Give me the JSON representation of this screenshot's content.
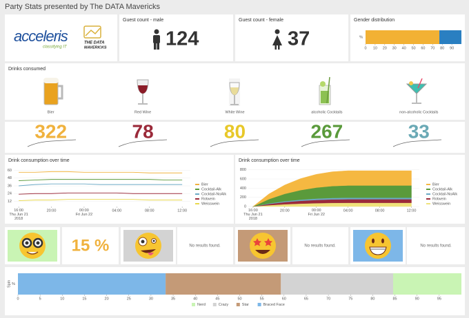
{
  "header": {
    "title": "Party Stats presented by The DATA Mavericks"
  },
  "logos": {
    "acceleris": "acceleris",
    "tagline": "classifying IT",
    "mavericks_top": "THE DATA",
    "mavericks_bottom": "MAVERICKS"
  },
  "guest_male": {
    "title": "Guest count - male",
    "value": 124
  },
  "guest_female": {
    "title": "Guest count - female",
    "value": 37
  },
  "drinks": {
    "title": "Drinks consumed",
    "items": [
      {
        "label": "Bier",
        "count": 322,
        "color": "#f0b23e"
      },
      {
        "label": "Red Wine",
        "count": 78,
        "color": "#9b2a3a"
      },
      {
        "label": "White Wine",
        "count": 80,
        "color": "#e8c829"
      },
      {
        "label": "alcoholic Cocktails",
        "count": 267,
        "color": "#5a9a3b"
      },
      {
        "label": "non-alcoholic Cocktails",
        "count": 33,
        "color": "#6aa9b5"
      }
    ]
  },
  "emoji_row": {
    "nerd_share": "15 %",
    "no_results": [
      "No results found.",
      "No results found.",
      "No results found."
    ]
  },
  "chart_data": [
    {
      "type": "hbar",
      "title": "Gender distribution",
      "categories": [
        "%"
      ],
      "series": [
        {
          "color": "#f2b134",
          "values": [
            77
          ]
        },
        {
          "color": "#2a7fc1",
          "values": [
            23
          ]
        }
      ],
      "xlim": [
        0,
        100
      ],
      "xticks": [
        0,
        10,
        20,
        30,
        40,
        50,
        60,
        70,
        80,
        90
      ]
    },
    {
      "type": "line",
      "title": "Drink consumption over time",
      "x": [
        0,
        2,
        4,
        6,
        8,
        10,
        12,
        14,
        16,
        18,
        20
      ],
      "xlim": [
        -0.6,
        21
      ],
      "xticks": [
        {
          "value": 0,
          "label": "16:00\nThu Jun 21\n2018"
        },
        {
          "value": 4,
          "label": "20:00"
        },
        {
          "value": 8,
          "label": "00:00\nFri Jun 22"
        },
        {
          "value": 12,
          "label": "04:00"
        },
        {
          "value": 16,
          "label": "08:00"
        },
        {
          "value": 20,
          "label": "12:00"
        }
      ],
      "ylim": [
        4,
        68
      ],
      "yticks": [
        12,
        24,
        36,
        48,
        60
      ],
      "series": [
        {
          "name": "Bier",
          "color": "#f0b23e",
          "values": [
            57,
            57,
            58,
            58,
            57,
            57,
            57,
            57,
            56,
            56,
            56
          ]
        },
        {
          "name": "Cocktail-Alk",
          "color": "#5a9a3b",
          "values": [
            44,
            45,
            46,
            46,
            46,
            46,
            46,
            46,
            46,
            45,
            45
          ]
        },
        {
          "name": "Cocktail-NoAlk",
          "color": "#6aa9c5",
          "values": [
            36,
            38,
            39,
            39,
            39,
            38,
            38,
            38,
            38,
            38,
            38
          ]
        },
        {
          "name": "Rotwein",
          "color": "#9b2a3a",
          "values": [
            23,
            24,
            24,
            25,
            25,
            25,
            25,
            24,
            24,
            24,
            24
          ]
        },
        {
          "name": "Weisswein",
          "color": "#e8d84a",
          "values": [
            13,
            14,
            14,
            15,
            15,
            15,
            15,
            15,
            14,
            14,
            14
          ]
        }
      ]
    },
    {
      "type": "area",
      "title": "Drink consumption over time",
      "x": [
        0,
        2,
        4,
        6,
        8,
        10,
        12,
        14,
        16,
        18,
        20
      ],
      "xlim": [
        -0.6,
        21
      ],
      "xticks": [
        {
          "value": 0,
          "label": "16:00\nThu Jun 21\n2018"
        },
        {
          "value": 4,
          "label": "20:00"
        },
        {
          "value": 8,
          "label": "00:00\nFri Jun 22"
        },
        {
          "value": 12,
          "label": "04:00"
        },
        {
          "value": 16,
          "label": "08:00"
        },
        {
          "value": 20,
          "label": "12:00"
        }
      ],
      "ylim": [
        0,
        900
      ],
      "yticks": [
        0,
        200,
        400,
        600,
        800
      ],
      "series": [
        {
          "name": "Bier",
          "color": "#f5b841",
          "values": [
            0,
            113,
            193,
            251,
            290,
            312,
            322,
            322,
            322,
            322,
            322
          ]
        },
        {
          "name": "Cocktail-Alk",
          "color": "#5a9a3b",
          "values": [
            0,
            93,
            160,
            208,
            240,
            259,
            267,
            267,
            267,
            267,
            267
          ]
        },
        {
          "name": "Cocktail-NoAlk",
          "color": "#6aa9c5",
          "values": [
            0,
            12,
            20,
            26,
            30,
            32,
            33,
            33,
            33,
            33,
            33
          ]
        },
        {
          "name": "Rotwein",
          "color": "#9b2a3a",
          "values": [
            0,
            27,
            47,
            61,
            70,
            76,
            78,
            78,
            78,
            78,
            78
          ]
        },
        {
          "name": "Weisswein",
          "color": "#efe27a",
          "values": [
            0,
            28,
            48,
            62,
            72,
            78,
            80,
            80,
            80,
            80,
            80
          ]
        }
      ]
    },
    {
      "type": "hbar",
      "ylabel": "Spin",
      "categories": [
        "%"
      ],
      "stack_reversed": true,
      "series": [
        {
          "name": "Nerd",
          "color": "#c9f4b4",
          "values": [
            15.4
          ]
        },
        {
          "name": "Crazy",
          "color": "#d3d3d3",
          "values": [
            25.3
          ]
        },
        {
          "name": "Star",
          "color": "#c49a77",
          "values": [
            26
          ]
        },
        {
          "name": "Braced Face",
          "color": "#7db7e8",
          "values": [
            33.3
          ]
        }
      ],
      "xlim": [
        0,
        100
      ],
      "xticks": [
        0,
        5,
        10,
        15,
        20,
        25,
        30,
        35,
        40,
        45,
        50,
        55,
        60,
        65,
        70,
        75,
        80,
        85,
        90,
        95
      ]
    }
  ]
}
